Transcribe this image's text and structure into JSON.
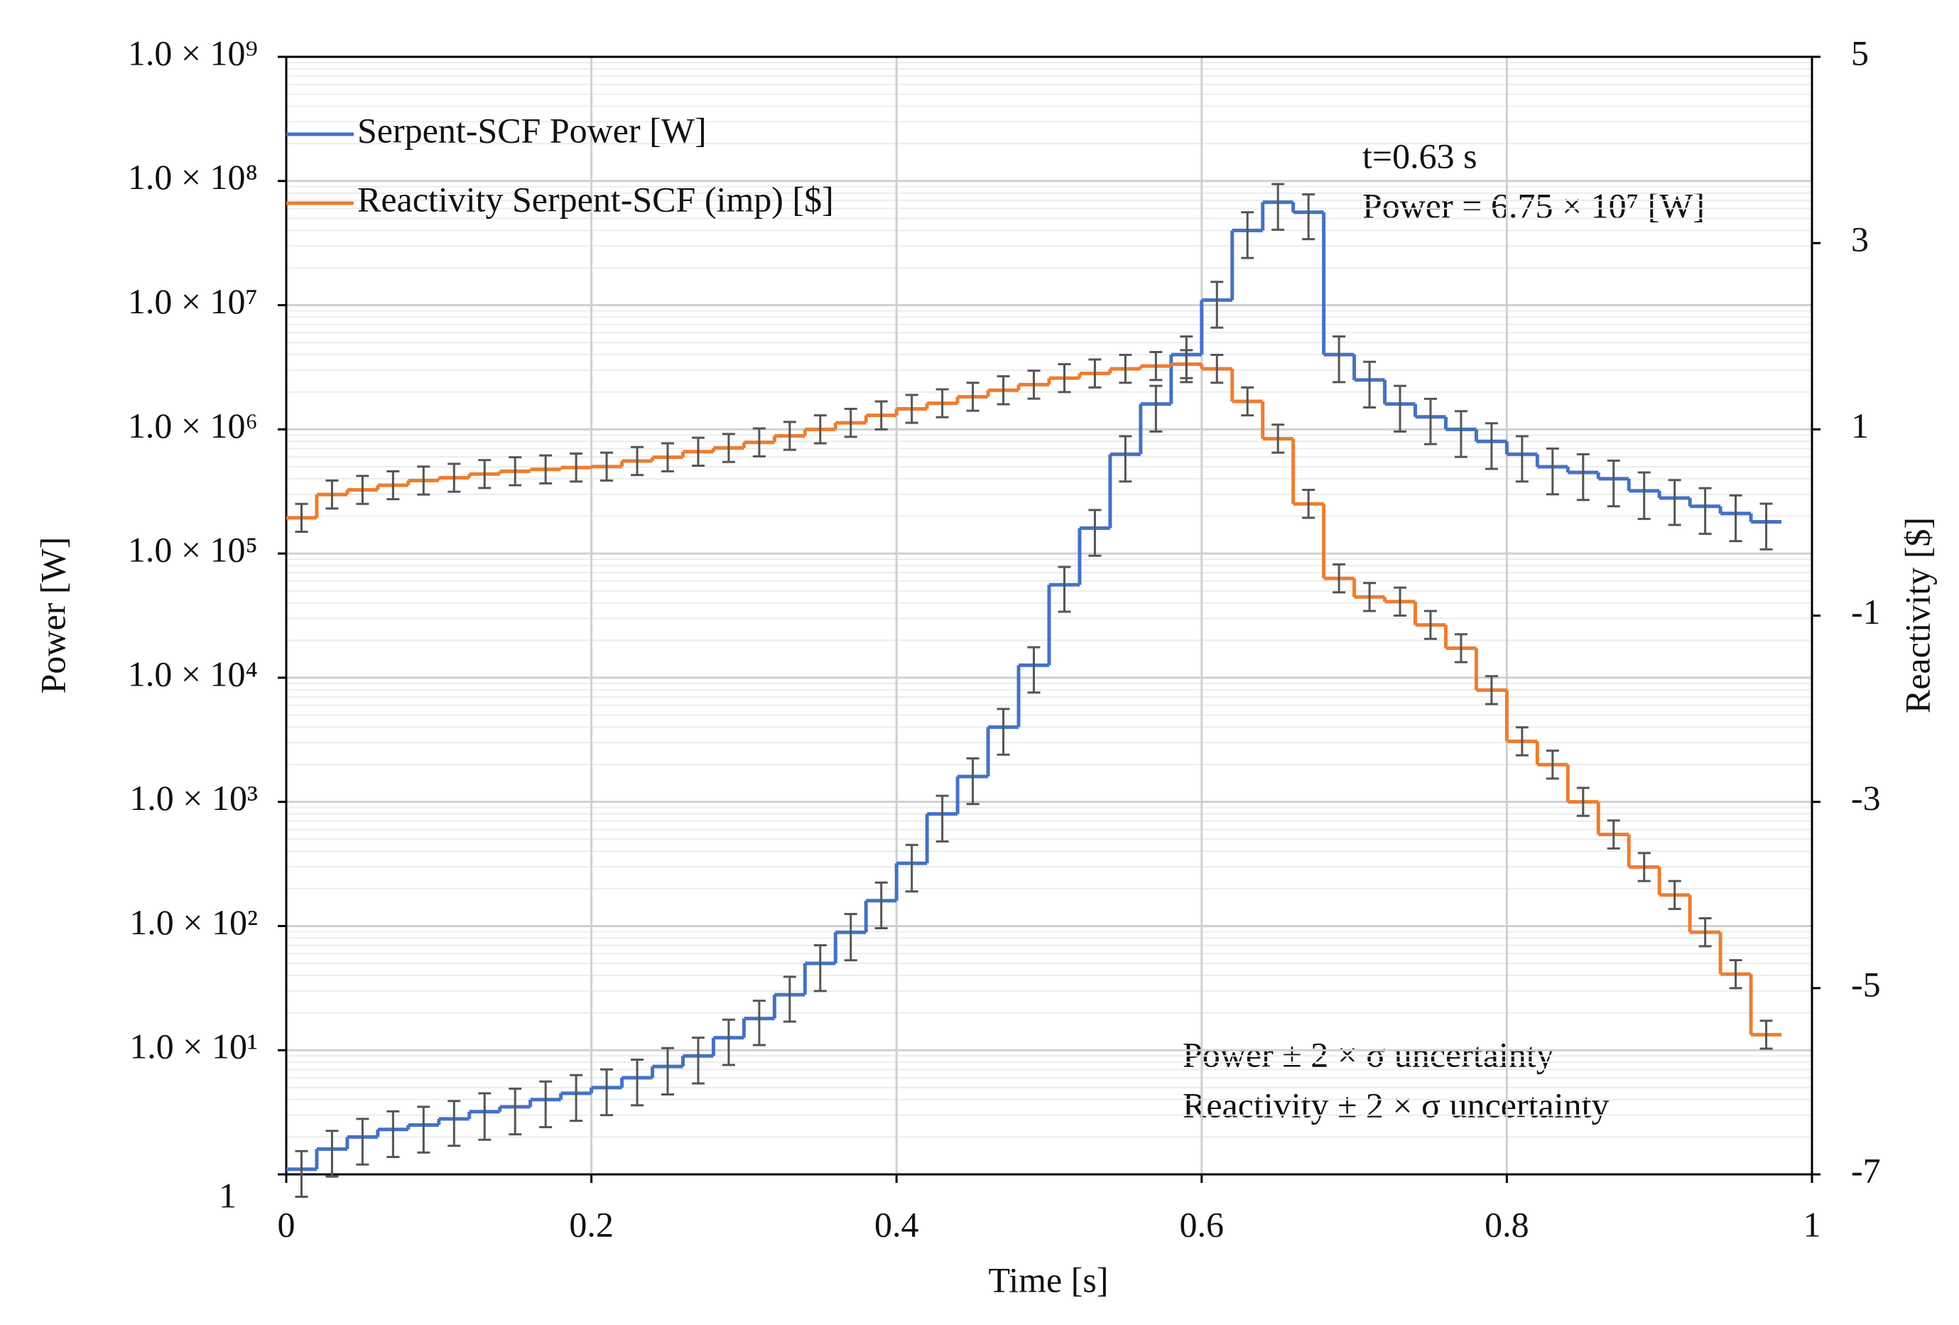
{
  "chart_data": {
    "type": "step",
    "x_label": "Time [s]",
    "y_label": "Power [W]",
    "y2_label": "Reactivity [$]",
    "annotations": [
      "t=0.63 s",
      "Power = 6.75 × 10⁷ [W]",
      "Power ± 2 × σ uncertainty",
      "Reactivity ± 2 × σ  uncertainty"
    ],
    "x": [
      0,
      0.02,
      0.04,
      0.06,
      0.08,
      0.1,
      0.12,
      0.14,
      0.16,
      0.18,
      0.2,
      0.22,
      0.24,
      0.26,
      0.28,
      0.3,
      0.32,
      0.34,
      0.36,
      0.38,
      0.4,
      0.42,
      0.44,
      0.46,
      0.48,
      0.5,
      0.52,
      0.54,
      0.56,
      0.58,
      0.6,
      0.62,
      0.64,
      0.66,
      0.68,
      0.7,
      0.72,
      0.74,
      0.76,
      0.78,
      0.8,
      0.82,
      0.84,
      0.86,
      0.88,
      0.9,
      0.92,
      0.94,
      0.96
    ],
    "series": [
      {
        "name": "Serpent-SCF Power [W]",
        "color": "#4472c4",
        "axis": "y",
        "values": [
          1.1,
          1.6,
          2,
          2.3,
          2.5,
          2.8,
          3.2,
          3.5,
          4,
          4.5,
          5,
          6,
          7.4,
          9,
          12.6,
          18,
          28,
          50,
          89,
          160,
          320,
          800,
          1600,
          4000,
          12600,
          56000,
          160000,
          630000,
          1600000,
          4000000,
          11000000,
          40000000,
          67500000,
          56000000,
          4000000,
          2500000,
          1600000,
          1260000,
          1000000,
          800000,
          630000,
          500000,
          450000,
          400000,
          320000,
          280000,
          240000,
          210000,
          180000
        ],
        "errors": [
          0.44,
          0.64,
          0.8,
          0.92,
          1,
          1.1,
          1.3,
          1.4,
          1.6,
          1.8,
          2,
          2.4,
          3,
          3.6,
          5,
          7,
          11,
          20,
          36,
          64,
          130,
          320,
          640,
          1600,
          5000,
          22000,
          64000,
          250000,
          640000,
          1600000,
          4400000,
          16000000,
          27000000,
          22000000,
          1600000,
          1000000,
          640000,
          500000,
          400000,
          320000,
          250000,
          200000,
          180000,
          160000,
          130000,
          110000,
          96000,
          84000,
          72000
        ]
      },
      {
        "name": "Reactivity Serpent-SCF (imp) [$]",
        "color": "#ed7d31",
        "axis": "y2",
        "values": [
          0.05,
          0.3,
          0.35,
          0.4,
          0.45,
          0.48,
          0.52,
          0.55,
          0.57,
          0.59,
          0.6,
          0.66,
          0.7,
          0.76,
          0.8,
          0.86,
          0.93,
          1.0,
          1.07,
          1.15,
          1.22,
          1.28,
          1.35,
          1.42,
          1.48,
          1.55,
          1.6,
          1.65,
          1.68,
          1.7,
          1.65,
          1.3,
          0.9,
          0.2,
          -0.6,
          -0.8,
          -0.85,
          -1.1,
          -1.35,
          -1.8,
          -2.35,
          -2.6,
          -3.0,
          -3.35,
          -3.7,
          -4.0,
          -4.4,
          -4.85,
          -5.5
        ],
        "errors": [
          0.15,
          0.15,
          0.15,
          0.15,
          0.15,
          0.15,
          0.15,
          0.15,
          0.15,
          0.15,
          0.15,
          0.15,
          0.15,
          0.15,
          0.15,
          0.15,
          0.15,
          0.15,
          0.15,
          0.15,
          0.15,
          0.15,
          0.15,
          0.15,
          0.15,
          0.15,
          0.15,
          0.15,
          0.15,
          0.15,
          0.15,
          0.15,
          0.15,
          0.15,
          0.15,
          0.15,
          0.15,
          0.15,
          0.15,
          0.15,
          0.15,
          0.15,
          0.15,
          0.15,
          0.15,
          0.15,
          0.15,
          0.15,
          0.15
        ]
      }
    ],
    "error_color": "#555555",
    "xlim": [
      0,
      1
    ],
    "xticks": [
      0,
      0.2,
      0.4,
      0.6,
      0.8,
      1
    ],
    "ylim": [
      1,
      1000000000
    ],
    "y_log": true,
    "yticks": [
      1,
      {
        "value": 10,
        "label": "1.0 × 10¹"
      },
      {
        "value": 100,
        "label": "1.0 × 10²"
      },
      {
        "value": 1000,
        "label": "1.0 × 10³"
      },
      {
        "value": 10000,
        "label": "1.0 × 10⁴"
      },
      {
        "value": 100000,
        "label": "1.0 × 10⁵"
      },
      {
        "value": 1000000,
        "label": "1.0 × 10⁶"
      },
      {
        "value": 10000000,
        "label": "1.0 × 10⁷"
      },
      {
        "value": 100000000,
        "label": "1.0 × 10⁸"
      },
      {
        "value": 1000000000,
        "label": "1.0 × 10⁹"
      }
    ],
    "y2lim": [
      -7,
      5
    ],
    "y2ticks": [
      -7,
      -5,
      -3,
      -1,
      1,
      3,
      5
    ],
    "grid": true,
    "legend": "upper left"
  }
}
